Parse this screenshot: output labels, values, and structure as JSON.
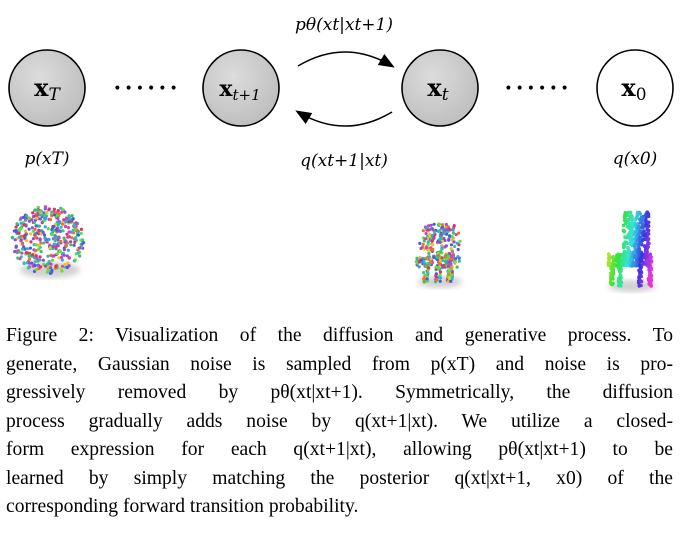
{
  "diagram": {
    "nodes": [
      {
        "id": "xT",
        "label": "x",
        "sub": "T",
        "shaded": true
      },
      {
        "id": "xt1",
        "label": "x",
        "sub": "t+1",
        "shaded": true
      },
      {
        "id": "xt",
        "label": "x",
        "sub": "t",
        "shaded": true
      },
      {
        "id": "x0",
        "label": "x",
        "sub": "0",
        "shaded": false
      }
    ],
    "ellipsis": "••••••",
    "forward_label": "pθ(xt|xt+1)",
    "reverse_label": "q(xt+1|xt)",
    "prior_label": "p(xT)",
    "data_label": "q(x0)"
  },
  "caption": {
    "lines": [
      "Figure 2: Visualization of the diffusion and generative process. To",
      "generate, Gaussian noise is sampled from p(xT) and noise is pro-",
      "gressively removed by pθ(xt|xt+1). Symmetrically, the diffusion",
      "process gradually adds noise by q(xt+1|xt). We utilize a closed-",
      "form expression for each q(xt+1|xt), allowing pθ(xt|xt+1) to be",
      "learned by simply matching the posterior q(xt|xt+1, x0) of the",
      "corresponding forward transition probability."
    ]
  }
}
